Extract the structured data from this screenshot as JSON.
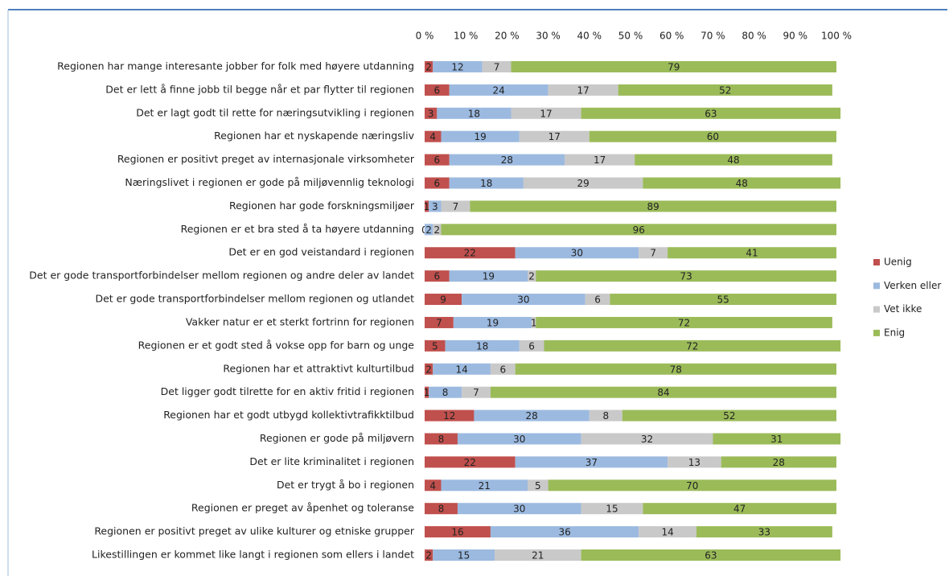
{
  "chart_data": {
    "type": "bar",
    "orientation": "horizontal",
    "stacked": true,
    "categories": [
      "Regionen har mange interesante jobber for folk med høyere utdanning",
      "Det er lett å finne jobb til begge når et par flytter til regionen",
      "Det er lagt godt til rette for næringsutvikling i regionen",
      "Regionen har et nyskapende næringsliv",
      "Regionen er positivt preget av internasjonale virksomheter",
      "Næringslivet i regionen er gode på miljøvennlig teknologi",
      "Regionen har gode forskningsmiljøer",
      "Regionen er et bra sted å ta høyere utdanning",
      "Det er en god veistandard i regionen",
      "Det er gode transportforbindelser mellom regionen og andre deler av landet",
      "Det er gode transportforbindelser mellom regionen og utlandet",
      "Vakker natur er et sterkt fortrinn for regionen",
      "Regionen er et godt sted å vokse opp for barn og unge",
      "Regionen har et attraktivt kulturtilbud",
      "Det ligger godt tilrette for en aktiv fritid i regionen",
      "Regionen har et godt utbygd kollektivtrafikktilbud",
      "Regionen er gode på miljøvern",
      "Det er lite kriminalitet i regionen",
      "Det er trygt å bo i regionen",
      "Regionen er preget av åpenhet og toleranse",
      "Regionen er positivt preget av ulike kulturer og etniske grupper",
      "Likestillingen er kommet like langt i regionen som ellers i landet"
    ],
    "series": [
      {
        "name": "Uenig",
        "color": "#c0504d",
        "values": [
          2,
          6,
          3,
          4,
          6,
          6,
          1,
          0,
          22,
          6,
          9,
          7,
          5,
          2,
          1,
          12,
          8,
          22,
          4,
          8,
          16,
          2
        ]
      },
      {
        "name": "Verken eller",
        "color": "#9cbae0",
        "values": [
          12,
          24,
          18,
          19,
          28,
          18,
          3,
          2,
          30,
          19,
          30,
          19,
          18,
          14,
          8,
          28,
          30,
          37,
          21,
          30,
          36,
          15
        ]
      },
      {
        "name": "Vet ikke",
        "color": "#c9c9c9",
        "values": [
          7,
          17,
          17,
          17,
          17,
          29,
          7,
          2,
          7,
          2,
          6,
          1,
          6,
          6,
          7,
          8,
          32,
          13,
          5,
          15,
          14,
          21
        ]
      },
      {
        "name": "Enig",
        "color": "#9bbb59",
        "values": [
          79,
          52,
          63,
          60,
          48,
          48,
          89,
          96,
          41,
          73,
          55,
          72,
          72,
          78,
          84,
          52,
          31,
          28,
          70,
          47,
          33,
          63
        ]
      }
    ],
    "xlim": [
      0,
      100
    ],
    "xticks": [
      {
        "value": 0,
        "label": "0 %"
      },
      {
        "value": 10,
        "label": "10 %"
      },
      {
        "value": 20,
        "label": "20 %"
      },
      {
        "value": 30,
        "label": "30 %"
      },
      {
        "value": 40,
        "label": "40 %"
      },
      {
        "value": 50,
        "label": "50 %"
      },
      {
        "value": 60,
        "label": "60 %"
      },
      {
        "value": 70,
        "label": "70 %"
      },
      {
        "value": 80,
        "label": "80 %"
      },
      {
        "value": 90,
        "label": "90 %"
      },
      {
        "value": 100,
        "label": "100 %"
      }
    ],
    "legend": "right"
  }
}
